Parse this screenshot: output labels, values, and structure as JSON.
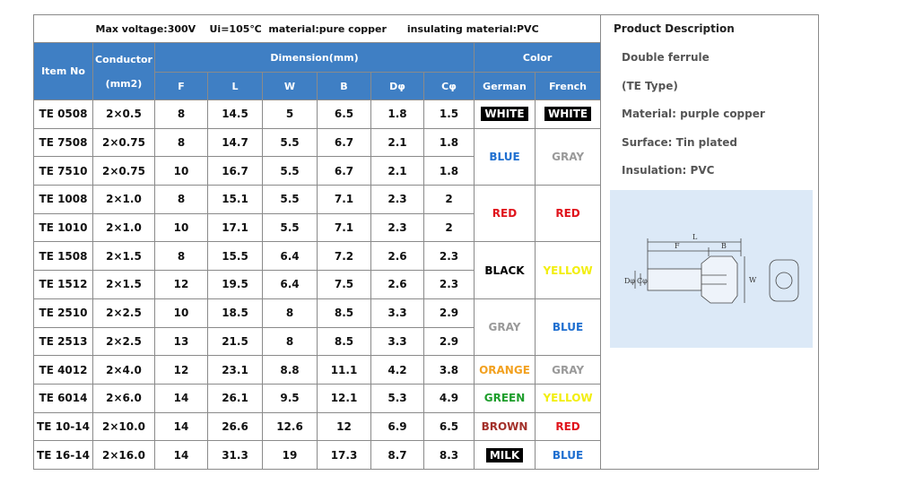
{
  "header": {
    "title": "Max voltage:300V    Ui=105℃  material:pure copper      insulating material:PVC"
  },
  "table": {
    "item_no": "Item No",
    "conductor": "Conductor",
    "conductor_unit": "(mm2)",
    "dimension": "Dimension(mm)",
    "dimension_columns": [
      "F",
      "L",
      "W",
      "B",
      "Dφ",
      "Cφ"
    ],
    "color": "Color",
    "color_columns": [
      "German",
      "French"
    ],
    "rows": [
      [
        "TE 0508",
        "2×0.5",
        "8",
        "14.5",
        "5",
        "6.5",
        "1.8",
        "1.5"
      ],
      [
        "TE 7508",
        "2×0.75",
        "8",
        "14.7",
        "5.5",
        "6.7",
        "2.1",
        "1.8"
      ],
      [
        "TE 7510",
        "2×0.75",
        "10",
        "16.7",
        "5.5",
        "6.7",
        "2.1",
        "1.8"
      ],
      [
        "TE 1008",
        "2×1.0",
        "8",
        "15.1",
        "5.5",
        "7.1",
        "2.3",
        "2"
      ],
      [
        "TE 1010",
        "2×1.0",
        "10",
        "17.1",
        "5.5",
        "7.1",
        "2.3",
        "2"
      ],
      [
        "TE 1508",
        "2×1.5",
        "8",
        "15.5",
        "6.4",
        "7.2",
        "2.6",
        "2.3"
      ],
      [
        "TE 1512",
        "2×1.5",
        "12",
        "19.5",
        "6.4",
        "7.5",
        "2.6",
        "2.3"
      ],
      [
        "TE 2510",
        "2×2.5",
        "10",
        "18.5",
        "8",
        "8.5",
        "3.3",
        "2.9"
      ],
      [
        "TE 2513",
        "2×2.5",
        "13",
        "21.5",
        "8",
        "8.5",
        "3.3",
        "2.9"
      ],
      [
        "TE 4012",
        "2×4.0",
        "12",
        "23.1",
        "8.8",
        "11.1",
        "4.2",
        "3.8"
      ],
      [
        "TE 6014",
        "2×6.0",
        "14",
        "26.1",
        "9.5",
        "12.1",
        "5.3",
        "4.9"
      ],
      [
        "TE 10-14",
        "2×10.0",
        "14",
        "26.6",
        "12.6",
        "12",
        "6.9",
        "6.5"
      ],
      [
        "TE 16-14",
        "2×16.0",
        "14",
        "31.3",
        "19",
        "17.3",
        "8.7",
        "8.3"
      ]
    ],
    "colors": [
      [
        "WHITE",
        "WHITE"
      ],
      [
        "BLUE",
        "GRAY"
      ],
      [
        "RED",
        "RED"
      ],
      [
        "BLACK",
        "YELLOW"
      ],
      [
        "GRAY",
        "BLUE"
      ],
      [
        "ORANGE",
        "GRAY"
      ],
      [
        "GREEN",
        "YELLOW"
      ],
      [
        "BROWN",
        "RED"
      ],
      [
        "MILK",
        "BLUE"
      ]
    ]
  },
  "description": {
    "title": "Product Description",
    "lines": [
      "Double ferrule",
      "(TE Type)",
      "Material: purple copper",
      "Surface: Tin plated",
      "Insulation: PVC"
    ]
  },
  "diagram": {
    "labels": [
      "L",
      "F",
      "B",
      "Dφ",
      "Cφ",
      "W"
    ]
  }
}
